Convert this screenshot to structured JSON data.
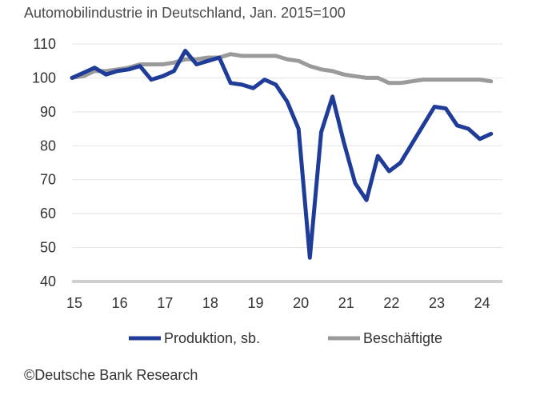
{
  "chart_data": {
    "type": "line",
    "title": "Automobilindustrie in Deutschland, Jan. 2015=100",
    "xlabel": "",
    "ylabel": "",
    "ylim": [
      40,
      110
    ],
    "yticks": [
      40,
      50,
      60,
      70,
      80,
      90,
      100,
      110
    ],
    "xlim": [
      15,
      24.5
    ],
    "xticks": [
      15,
      16,
      17,
      18,
      19,
      20,
      21,
      22,
      23,
      24
    ],
    "xtick_labels": [
      "15",
      "16",
      "17",
      "18",
      "19",
      "20",
      "21",
      "22",
      "23",
      "24"
    ],
    "grid": "horizontal",
    "legend_position": "bottom",
    "series": [
      {
        "name": "Produktion, sb.",
        "color": "#1f3c99",
        "x": [
          15.0,
          15.25,
          15.5,
          15.75,
          16.0,
          16.25,
          16.5,
          16.75,
          17.0,
          17.25,
          17.5,
          17.75,
          18.0,
          18.25,
          18.5,
          18.75,
          19.0,
          19.25,
          19.5,
          19.75,
          20.0,
          20.25,
          20.5,
          20.75,
          21.0,
          21.25,
          21.5,
          21.75,
          22.0,
          22.25,
          22.5,
          22.75,
          23.0,
          23.25,
          23.5,
          23.75,
          24.0,
          24.25
        ],
        "y": [
          100,
          101.5,
          103,
          101,
          102,
          102.5,
          103.5,
          99.5,
          100.5,
          102,
          108,
          104,
          105,
          106,
          98.5,
          98,
          97,
          99.5,
          98,
          93,
          85,
          47,
          84,
          94.5,
          81,
          69,
          64,
          77,
          72.5,
          75,
          80.5,
          86,
          91.5,
          91,
          86,
          85,
          82,
          83.5
        ]
      },
      {
        "name": "Beschäftigte",
        "color": "#9a9a9a",
        "x": [
          15.0,
          15.25,
          15.5,
          15.75,
          16.0,
          16.25,
          16.5,
          16.75,
          17.0,
          17.25,
          17.5,
          17.75,
          18.0,
          18.25,
          18.5,
          18.75,
          19.0,
          19.25,
          19.5,
          19.75,
          20.0,
          20.25,
          20.5,
          20.75,
          21.0,
          21.25,
          21.5,
          21.75,
          22.0,
          22.25,
          22.5,
          22.75,
          23.0,
          23.25,
          23.5,
          23.75,
          24.0,
          24.25
        ],
        "y": [
          100,
          100.5,
          102,
          102,
          102.5,
          103,
          104,
          104,
          104,
          104.5,
          105.5,
          105.5,
          106,
          106,
          107,
          106.5,
          106.5,
          106.5,
          106.5,
          105.5,
          105,
          103.5,
          102.5,
          102,
          101,
          100.5,
          100,
          100,
          98.5,
          98.5,
          99,
          99.5,
          99.5,
          99.5,
          99.5,
          99.5,
          99.5,
          99
        ]
      }
    ]
  },
  "footer": {
    "credit": "©Deutsche Bank Research"
  }
}
